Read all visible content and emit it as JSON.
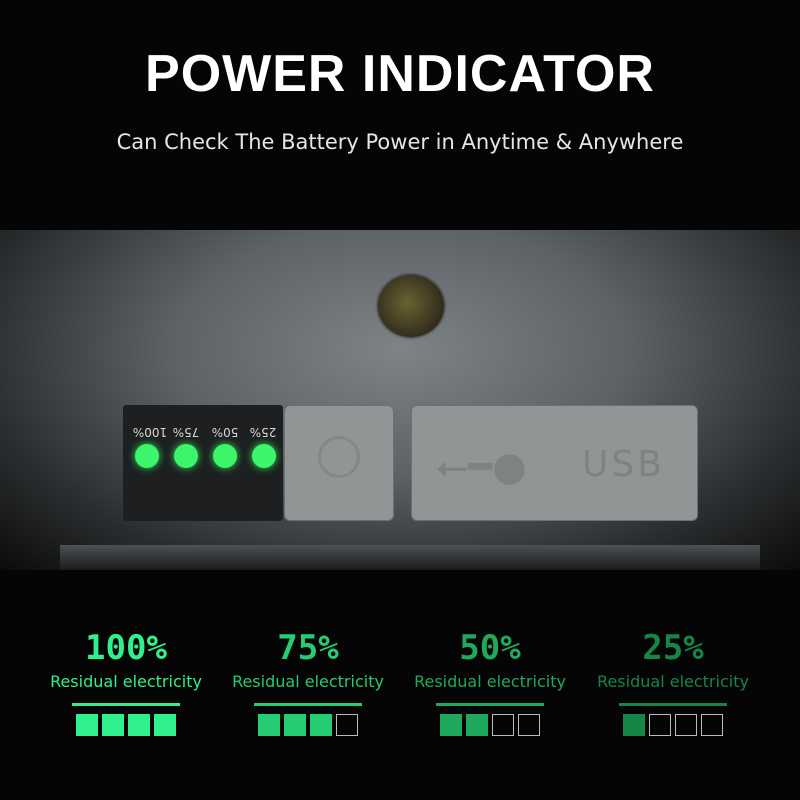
{
  "title": "POWER INDICATOR",
  "subtitle": "Can Check The Battery Power in Anytime & Anywhere",
  "device": {
    "led_labels": [
      "100%",
      "75%",
      "50%",
      "25%"
    ],
    "usb_label": "USB",
    "led_color": "#3cf56a"
  },
  "levels": [
    {
      "percent": "100%",
      "label": "Residual electricity",
      "filled": 4,
      "total": 4,
      "color": "#2ff08c"
    },
    {
      "percent": "75%",
      "label": "Residual electricity",
      "filled": 3,
      "total": 4,
      "color": "#25cc74"
    },
    {
      "percent": "50%",
      "label": "Residual electricity",
      "filled": 2,
      "total": 4,
      "color": "#1ea95d"
    },
    {
      "percent": "25%",
      "label": "Residual electricity",
      "filled": 1,
      "total": 4,
      "color": "#168646"
    }
  ]
}
